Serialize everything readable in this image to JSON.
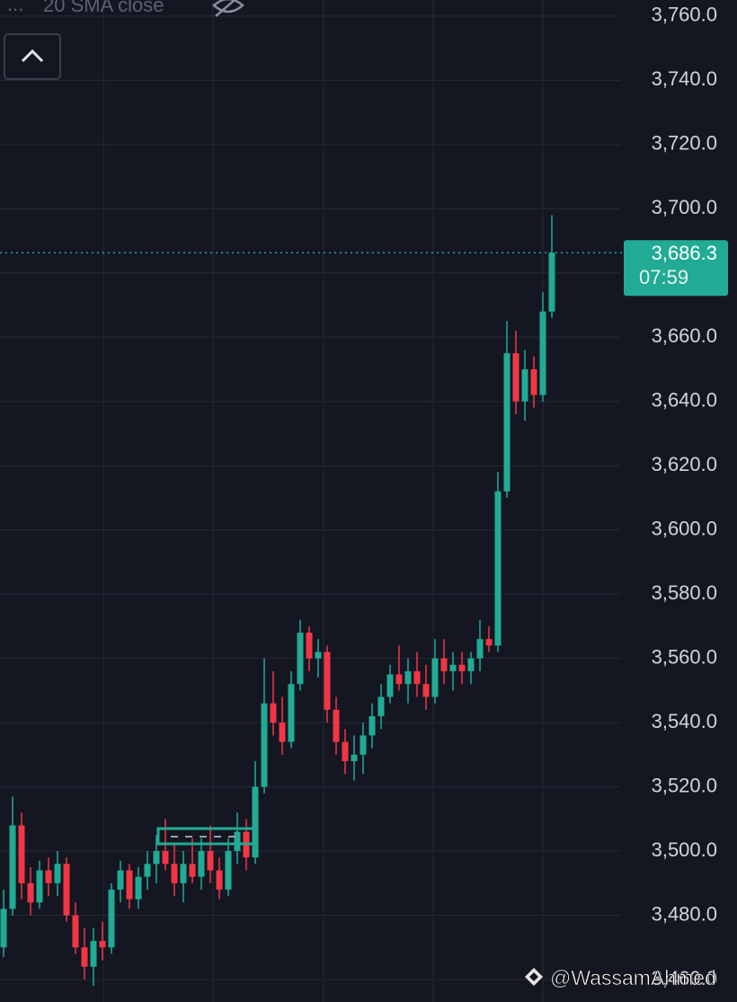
{
  "chart_data": {
    "type": "candlestick",
    "indicator": "20 SMA close",
    "watermark": "@WassamAhmed",
    "up_color": "#22ab94",
    "down_color": "#f23645",
    "ylim": [
      3453,
      3765
    ],
    "yticks": [
      {
        "value": 3460,
        "label": "3,460.0"
      },
      {
        "value": 3480,
        "label": "3,480.0"
      },
      {
        "value": 3500,
        "label": "3,500.0"
      },
      {
        "value": 3520,
        "label": "3,520.0"
      },
      {
        "value": 3540,
        "label": "3,540.0"
      },
      {
        "value": 3560,
        "label": "3,560.0"
      },
      {
        "value": 3580,
        "label": "3,580.0"
      },
      {
        "value": 3600,
        "label": "3,600.0"
      },
      {
        "value": 3620,
        "label": "3,620.0"
      },
      {
        "value": 3640,
        "label": "3,640.0"
      },
      {
        "value": 3660,
        "label": "3,660.0"
      },
      {
        "value": 3680,
        "label": "3,680.0"
      },
      {
        "value": 3700,
        "label": "3,700.0"
      },
      {
        "value": 3720,
        "label": "3,720.0"
      },
      {
        "value": 3740,
        "label": "3,740.0"
      },
      {
        "value": 3760,
        "label": "3,760.0"
      }
    ],
    "last_price": {
      "value": 3686.3,
      "label": "3,686.3"
    },
    "countdown": "07:59",
    "open": [
      3470,
      3482,
      3508,
      3490,
      3484,
      3494,
      3490,
      3496,
      3480,
      3470,
      3464,
      3472,
      3470,
      3488,
      3494,
      3485,
      3492,
      3496,
      3500,
      3496,
      3490,
      3496,
      3492,
      3500,
      3494,
      3488,
      3500,
      3506,
      3498,
      3520,
      3546,
      3540,
      3534,
      3552,
      3568,
      3560,
      3562,
      3544,
      3534,
      3528,
      3530,
      3536,
      3542,
      3548,
      3555,
      3552,
      3556,
      3552,
      3548,
      3560,
      3556,
      3558,
      3556,
      3560,
      3566,
      3564,
      3612,
      3655,
      3640,
      3650,
      3642,
      3668
    ],
    "high": [
      3488,
      3517,
      3512,
      3495,
      3497,
      3498,
      3500,
      3498,
      3484,
      3476,
      3476,
      3478,
      3490,
      3497,
      3496,
      3495,
      3500,
      3505,
      3510,
      3502,
      3500,
      3504,
      3504,
      3508,
      3498,
      3504,
      3512,
      3510,
      3528,
      3560,
      3556,
      3548,
      3556,
      3572,
      3570,
      3566,
      3564,
      3548,
      3538,
      3536,
      3540,
      3546,
      3552,
      3558,
      3564,
      3560,
      3562,
      3558,
      3566,
      3566,
      3562,
      3562,
      3562,
      3572,
      3570,
      3618,
      3665,
      3662,
      3656,
      3654,
      3674,
      3698
    ],
    "low": [
      3467,
      3480,
      3485,
      3480,
      3482,
      3486,
      3486,
      3478,
      3468,
      3460,
      3458,
      3466,
      3468,
      3484,
      3482,
      3482,
      3488,
      3490,
      3494,
      3486,
      3484,
      3490,
      3488,
      3490,
      3485,
      3486,
      3496,
      3494,
      3496,
      3518,
      3536,
      3530,
      3532,
      3550,
      3556,
      3554,
      3540,
      3530,
      3524,
      3522,
      3524,
      3532,
      3538,
      3546,
      3550,
      3546,
      3548,
      3544,
      3546,
      3552,
      3550,
      3552,
      3552,
      3556,
      3562,
      3562,
      3610,
      3636,
      3634,
      3638,
      3640,
      3666
    ],
    "close": [
      3482,
      3508,
      3490,
      3484,
      3494,
      3490,
      3496,
      3480,
      3470,
      3464,
      3472,
      3470,
      3488,
      3494,
      3485,
      3492,
      3496,
      3500,
      3496,
      3490,
      3496,
      3492,
      3500,
      3494,
      3488,
      3500,
      3506,
      3498,
      3520,
      3546,
      3540,
      3534,
      3552,
      3568,
      3560,
      3562,
      3544,
      3534,
      3528,
      3530,
      3536,
      3542,
      3548,
      3555,
      3552,
      3556,
      3552,
      3548,
      3560,
      3556,
      3558,
      3556,
      3560,
      3566,
      3564,
      3612,
      3655,
      3640,
      3650,
      3642,
      3668,
      3686.3
    ]
  }
}
